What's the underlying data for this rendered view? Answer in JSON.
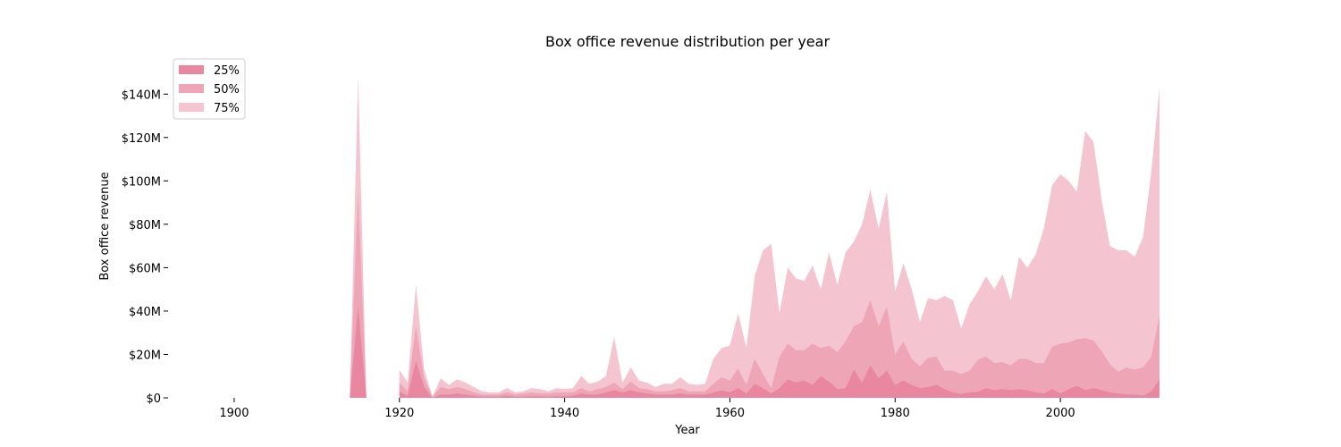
{
  "chart_data": {
    "type": "area",
    "title": "Box office revenue distribution per year",
    "xlabel": "Year",
    "ylabel": "Box office revenue",
    "xlim": [
      1892,
      2012
    ],
    "ylim": [
      0,
      150000000
    ],
    "x_ticks": [
      1900,
      1920,
      1940,
      1960,
      1980,
      2000
    ],
    "y_ticks": [
      {
        "value": 0,
        "label": "$0"
      },
      {
        "value": 20000000,
        "label": "$20M"
      },
      {
        "value": 40000000,
        "label": "$40M"
      },
      {
        "value": 60000000,
        "label": "$60M"
      },
      {
        "value": 80000000,
        "label": "$80M"
      },
      {
        "value": 100000000,
        "label": "$100M"
      },
      {
        "value": 120000000,
        "label": "$120M"
      },
      {
        "value": 140000000,
        "label": "$140M"
      }
    ],
    "grid": false,
    "legend_position": "top-left",
    "segments": [
      {
        "x": [
          1914,
          1915,
          1916
        ],
        "series": [
          {
            "name": "25%",
            "color": "#e8879f",
            "values": [
              0,
              42000000,
              0
            ]
          },
          {
            "name": "50%",
            "color": "#eea6b7",
            "values": [
              0,
              95000000,
              0
            ]
          },
          {
            "name": "75%",
            "color": "#f4c4d0",
            "values": [
              0,
              148000000,
              0
            ]
          }
        ]
      },
      {
        "x": [
          1920,
          1921,
          1922,
          1923,
          1924,
          1925,
          1926,
          1927,
          1928,
          1929,
          1930,
          1931,
          1932,
          1933,
          1934,
          1935,
          1936,
          1937,
          1938,
          1939,
          1940,
          1941,
          1942,
          1943,
          1944,
          1945,
          1946,
          1947,
          1948,
          1949,
          1950,
          1951,
          1952,
          1953,
          1954,
          1955,
          1956,
          1957,
          1958,
          1959,
          1960,
          1961,
          1962,
          1963,
          1964,
          1965,
          1966,
          1967,
          1968,
          1969,
          1970,
          1971,
          1972,
          1973,
          1974,
          1975,
          1976,
          1977,
          1978,
          1979,
          1980,
          1981,
          1982,
          1983,
          1984,
          1985,
          1986,
          1987,
          1988,
          1989,
          1990,
          1991,
          1992,
          1993,
          1994,
          1995,
          1996,
          1997,
          1998,
          1999,
          2000,
          2001,
          2002,
          2003,
          2004,
          2005,
          2006,
          2007,
          2008,
          2009,
          2010,
          2011,
          2012
        ],
        "series": [
          {
            "name": "25%",
            "color": "#e8879f",
            "values": [
              3000000,
              1000000,
              17000000,
              5000000,
              0,
              1500000,
              1500000,
              2000000,
              1500000,
              1000000,
              500000,
              500000,
              500000,
              1000000,
              500000,
              500000,
              700000,
              700000,
              500000,
              700000,
              700000,
              1000000,
              2000000,
              1500000,
              1500000,
              2500000,
              3500000,
              2500000,
              3500000,
              2500000,
              2000000,
              1500000,
              1500000,
              1500000,
              2000000,
              1500000,
              1500000,
              1500000,
              2500000,
              3500000,
              2500000,
              4500000,
              2000000,
              6500000,
              4500000,
              2000000,
              4500000,
              8500000,
              7000000,
              8000000,
              6000000,
              10000000,
              7500000,
              4000000,
              4500000,
              13000000,
              7000000,
              15000000,
              9000000,
              12500000,
              6000000,
              8000000,
              6000000,
              4500000,
              5000000,
              6000000,
              4000000,
              2500000,
              1800000,
              2500000,
              2800000,
              4500000,
              3500000,
              4000000,
              3500000,
              4000000,
              3500000,
              2500000,
              2000000,
              4000000,
              2000000,
              4000000,
              5500000,
              3500000,
              4500000,
              3500000,
              2500000,
              2000000,
              1500000,
              1500000,
              1000000,
              3000000,
              8500000
            ]
          },
          {
            "name": "50%",
            "color": "#eea6b7",
            "values": [
              7000000,
              3000000,
              33000000,
              9000000,
              500000,
              5000000,
              4000000,
              5000000,
              4000000,
              2500000,
              1500000,
              1500000,
              1500000,
              2500000,
              1500000,
              2000000,
              2500000,
              2000000,
              2000000,
              2500000,
              2500000,
              2500000,
              4500000,
              3000000,
              4000000,
              5000000,
              7000000,
              4000000,
              7500000,
              4500000,
              4000000,
              3000000,
              3000000,
              3500000,
              4500000,
              3000000,
              3000000,
              3000000,
              6500000,
              9500000,
              8000000,
              13500000,
              6000000,
              18000000,
              11000000,
              4500000,
              19000000,
              25000000,
              22000000,
              22000000,
              25000000,
              23000000,
              24000000,
              21000000,
              26000000,
              33000000,
              35000000,
              45000000,
              33000000,
              42000000,
              20000000,
              26000000,
              18000000,
              14500000,
              18500000,
              19000000,
              12500000,
              12500000,
              11000000,
              12500000,
              17500000,
              19000000,
              16000000,
              16500000,
              15000000,
              18000000,
              18000000,
              16000000,
              16000000,
              23500000,
              25000000,
              25500000,
              27000000,
              27500000,
              26500000,
              21500000,
              15500000,
              12000000,
              14000000,
              13000000,
              14000000,
              19000000,
              38000000
            ]
          },
          {
            "name": "75%",
            "color": "#f4c4d0",
            "values": [
              13000000,
              7000000,
              52000000,
              13000000,
              500000,
              9000000,
              6000000,
              8500000,
              7000000,
              5000000,
              3000000,
              2500000,
              2500000,
              4500000,
              2500000,
              3000000,
              4500000,
              4000000,
              3000000,
              4500000,
              4000000,
              4500000,
              10000000,
              6500000,
              7500000,
              10000000,
              28000000,
              7000000,
              14000000,
              8000000,
              7000000,
              5000000,
              6500000,
              6500000,
              9500000,
              6500000,
              6000000,
              6500000,
              18000000,
              23000000,
              24000000,
              39000000,
              23000000,
              56000000,
              68000000,
              71000000,
              39000000,
              60000000,
              55000000,
              54000000,
              61000000,
              50000000,
              67000000,
              52000000,
              67000000,
              72000000,
              80000000,
              96000000,
              78000000,
              95000000,
              49000000,
              62000000,
              50000000,
              35000000,
              46000000,
              45000000,
              47000000,
              45000000,
              32000000,
              43000000,
              49000000,
              56000000,
              50000000,
              57000000,
              45000000,
              65000000,
              60000000,
              66000000,
              78000000,
              98000000,
              103000000,
              100000000,
              95000000,
              123000000,
              118000000,
              91000000,
              70000000,
              68000000,
              68000000,
              65000000,
              74000000,
              104000000,
              143000000
            ]
          }
        ]
      }
    ]
  }
}
